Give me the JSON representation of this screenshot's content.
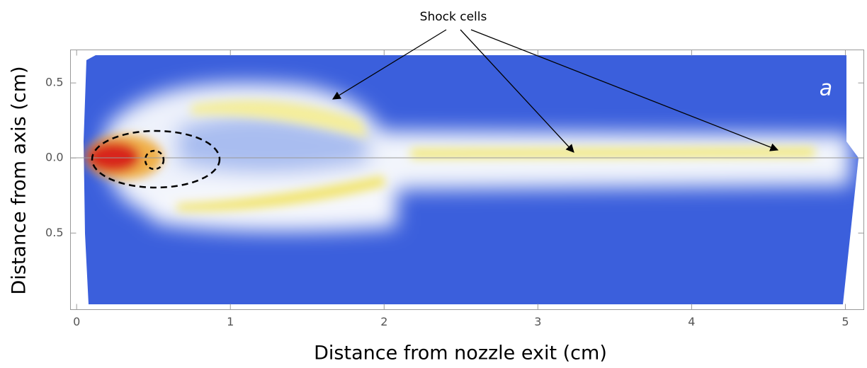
{
  "chart_data": {
    "type": "density",
    "annotations": [
      "Shock cells",
      "a"
    ],
    "x_label": "Distance from nozzle exit (cm)",
    "y_label": "Distance from axis (cm)",
    "xlim": [
      -0.04,
      5.12
    ],
    "xticks": [
      0,
      1,
      2,
      3,
      4,
      5
    ],
    "ylim": [
      -1.01,
      0.72
    ],
    "yticks": [
      {
        "value": 0.5,
        "label": "0.5"
      },
      {
        "value": 0,
        "label": "0.0"
      },
      {
        "value": -0.5,
        "label": "0.5"
      }
    ]
  }
}
